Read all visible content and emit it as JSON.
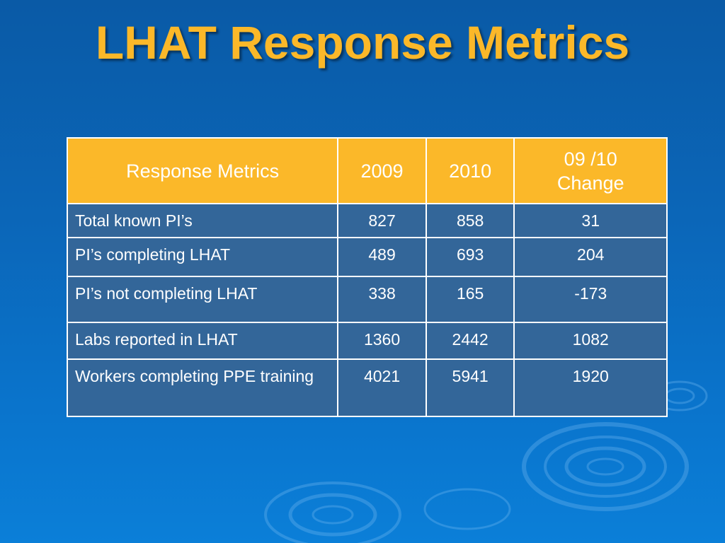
{
  "slide": {
    "title": "LHAT Response Metrics"
  },
  "table": {
    "headers": [
      "Response Metrics",
      "2009",
      "2010",
      "09 /10 Change"
    ],
    "rows": [
      {
        "metric": "Total known PI’s",
        "y2009": "827",
        "y2010": "858",
        "change": "31"
      },
      {
        "metric": "PI’s completing LHAT",
        "y2009": "489",
        "y2010": "693",
        "change": "204"
      },
      {
        "metric": "PI’s not completing LHAT",
        "y2009": "338",
        "y2010": "165",
        "change": "-173"
      },
      {
        "metric": "Labs reported in LHAT",
        "y2009": "1360",
        "y2010": "2442",
        "change": "1082"
      },
      {
        "metric": "Workers completing PPE training",
        "y2009": "4021",
        "y2010": "5941",
        "change": "1920"
      }
    ]
  },
  "colors": {
    "background": "#0b66b8",
    "title": "#fbb829",
    "header_fill": "#fbb829",
    "cell_fill": "#336699",
    "border": "#ffffff"
  }
}
